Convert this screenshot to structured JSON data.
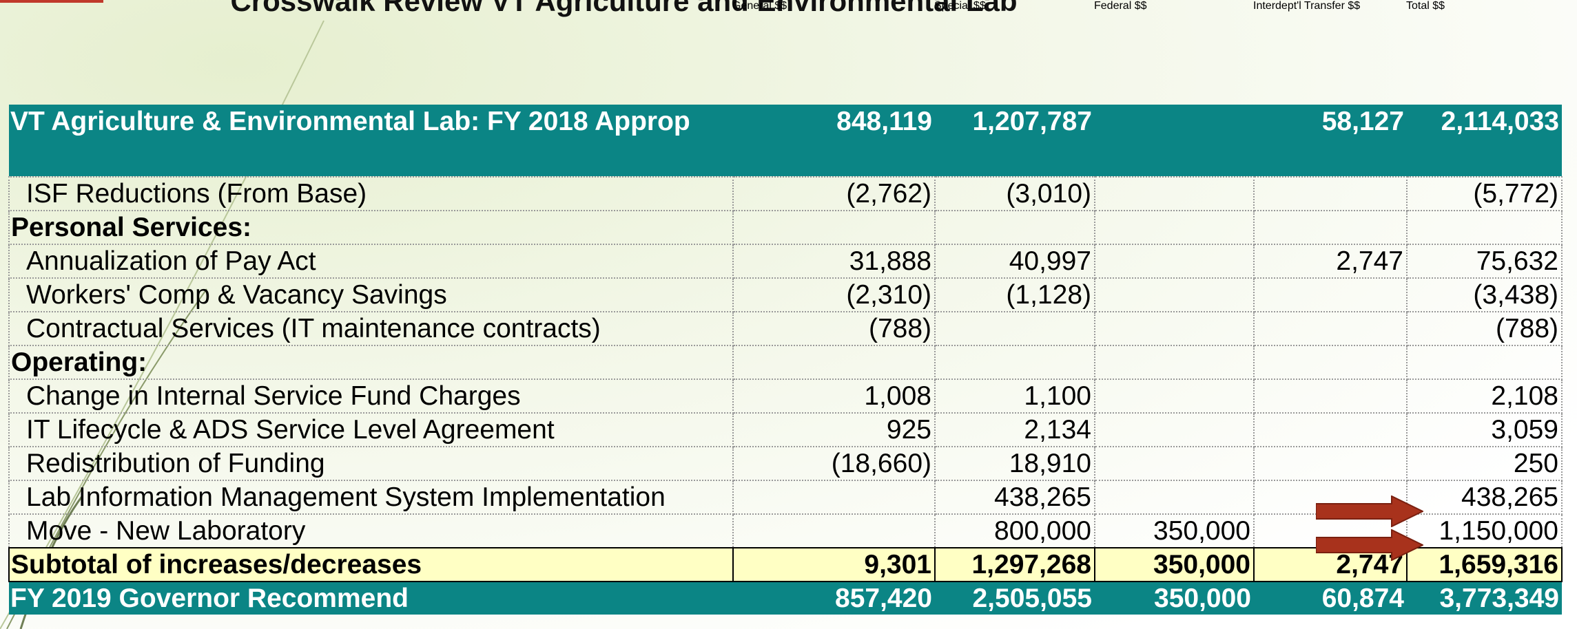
{
  "title": "Crosswalk Review VT Agriculture and Environmental Lab",
  "table": {
    "columns": [
      "General $$",
      "Special $$",
      "Federal $$",
      "Interdept'l Transfer $$",
      "Total $$"
    ],
    "rows": [
      [
        "VT Agriculture & Environmental Lab: FY 2018 Approp",
        "848,119",
        "1,207,787",
        null,
        "58,127",
        "2,114,033"
      ],
      [
        "ISF Reductions (From Base)",
        "(2,762)",
        "(3,010)",
        null,
        null,
        "(5,772)"
      ],
      [
        "Personal Services:",
        null,
        null,
        null,
        null,
        null
      ],
      [
        "Annualization of Pay Act",
        "31,888",
        "40,997",
        null,
        "2,747",
        "75,632"
      ],
      [
        "Workers' Comp & Vacancy Savings",
        "(2,310)",
        "(1,128)",
        null,
        null,
        "(3,438)"
      ],
      [
        "Contractual Services (IT maintenance contracts)",
        "(788)",
        null,
        null,
        null,
        "(788)"
      ],
      [
        "Operating:",
        null,
        null,
        null,
        null,
        null
      ],
      [
        "Change in Internal Service Fund Charges",
        "1,008",
        "1,100",
        null,
        null,
        "2,108"
      ],
      [
        "IT Lifecycle & ADS Service Level Agreement",
        "925",
        "2,134",
        null,
        null,
        "3,059"
      ],
      [
        "Redistribution of Funding",
        "(18,660)",
        "18,910",
        null,
        null,
        "250"
      ],
      [
        "Lab Information Management System Implementation",
        null,
        "438,265",
        null,
        null,
        "438,265"
      ],
      [
        "Move - New Laboratory",
        null,
        "800,000",
        "350,000",
        null,
        "1,150,000"
      ],
      [
        "Subtotal of increases/decreases",
        "9,301",
        "1,297,268",
        "350,000",
        "2,747",
        "1,659,316"
      ],
      [
        "FY 2019 Governor Recommend",
        "857,420",
        "2,505,055",
        "350,000",
        "60,874",
        "3,773,349"
      ]
    ]
  }
}
